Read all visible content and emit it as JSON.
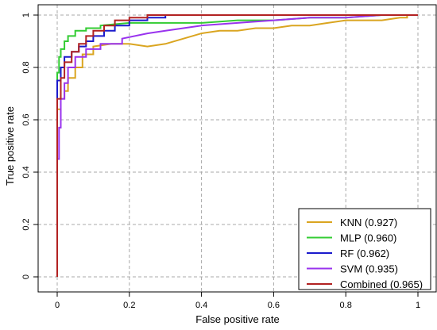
{
  "chart_data": {
    "type": "line",
    "title": "",
    "xlabel": "False positive rate",
    "ylabel": "True positive rate",
    "xlim": [
      0,
      1
    ],
    "ylim": [
      0,
      1
    ],
    "xticks": [
      "0",
      "0.2",
      "0.4",
      "0.6",
      "0.8",
      "1"
    ],
    "yticks": [
      "0",
      "0.2",
      "0.4",
      "0.6",
      "0.8",
      "1"
    ],
    "grid": true,
    "legend_position": "bottom-right",
    "series": [
      {
        "name": "KNN (0.927)",
        "color": "#DAA520",
        "x": [
          0,
          0,
          0.01,
          0.01,
          0.02,
          0.02,
          0.03,
          0.03,
          0.05,
          0.05,
          0.07,
          0.07,
          0.1,
          0.1,
          0.15,
          0.2,
          0.25,
          0.3,
          0.35,
          0.4,
          0.45,
          0.5,
          0.55,
          0.6,
          0.65,
          0.7,
          0.75,
          0.8,
          0.85,
          0.9,
          0.95,
          0.97,
          0.97,
          1
        ],
        "y": [
          0,
          0.64,
          0.64,
          0.68,
          0.68,
          0.71,
          0.71,
          0.76,
          0.76,
          0.8,
          0.8,
          0.85,
          0.85,
          0.88,
          0.89,
          0.89,
          0.88,
          0.89,
          0.91,
          0.93,
          0.94,
          0.94,
          0.95,
          0.95,
          0.96,
          0.96,
          0.97,
          0.98,
          0.98,
          0.98,
          0.99,
          0.99,
          1,
          1
        ]
      },
      {
        "name": "MLP (0.960)",
        "color": "#33CC33",
        "x": [
          0,
          0,
          0.005,
          0.005,
          0.01,
          0.01,
          0.02,
          0.02,
          0.03,
          0.03,
          0.05,
          0.05,
          0.08,
          0.08,
          0.12,
          0.12,
          0.2,
          0.3,
          0.4,
          0.5,
          0.6,
          0.7,
          0.8,
          0.9,
          1
        ],
        "y": [
          0,
          0.78,
          0.78,
          0.84,
          0.84,
          0.87,
          0.87,
          0.9,
          0.9,
          0.92,
          0.92,
          0.94,
          0.94,
          0.95,
          0.95,
          0.96,
          0.97,
          0.97,
          0.97,
          0.98,
          0.98,
          0.99,
          0.99,
          1,
          1
        ]
      },
      {
        "name": "RF (0.962)",
        "color": "#1A1ACC",
        "x": [
          0,
          0,
          0.01,
          0.01,
          0.02,
          0.02,
          0.04,
          0.04,
          0.06,
          0.06,
          0.08,
          0.08,
          0.1,
          0.1,
          0.13,
          0.13,
          0.16,
          0.16,
          0.2,
          0.2,
          0.25,
          0.25,
          0.3,
          0.3,
          0.4,
          1
        ],
        "y": [
          0,
          0.75,
          0.75,
          0.8,
          0.8,
          0.84,
          0.84,
          0.86,
          0.86,
          0.88,
          0.88,
          0.9,
          0.9,
          0.92,
          0.92,
          0.94,
          0.94,
          0.96,
          0.96,
          0.98,
          0.98,
          0.99,
          0.99,
          1,
          1,
          1
        ]
      },
      {
        "name": "SVM (0.935)",
        "color": "#9933EE",
        "x": [
          0,
          0,
          0.005,
          0.005,
          0.01,
          0.01,
          0.02,
          0.02,
          0.03,
          0.03,
          0.05,
          0.05,
          0.08,
          0.08,
          0.12,
          0.12,
          0.18,
          0.18,
          0.25,
          0.3,
          0.35,
          0.4,
          0.5,
          0.6,
          0.7,
          0.8,
          0.9,
          1
        ],
        "y": [
          0,
          0.45,
          0.45,
          0.57,
          0.57,
          0.68,
          0.68,
          0.74,
          0.74,
          0.8,
          0.8,
          0.84,
          0.84,
          0.87,
          0.87,
          0.89,
          0.89,
          0.91,
          0.93,
          0.94,
          0.95,
          0.96,
          0.97,
          0.98,
          0.99,
          0.99,
          1,
          1
        ]
      },
      {
        "name": "Combined (0.965)",
        "color": "#B22222",
        "x": [
          0,
          0,
          0.01,
          0.01,
          0.02,
          0.02,
          0.04,
          0.04,
          0.06,
          0.06,
          0.08,
          0.08,
          0.1,
          0.1,
          0.13,
          0.13,
          0.16,
          0.16,
          0.2,
          0.2,
          0.25,
          0.25,
          0.3,
          0.4,
          0.5,
          0.6,
          0.7,
          0.8,
          0.9,
          1
        ],
        "y": [
          0,
          0.68,
          0.68,
          0.76,
          0.76,
          0.82,
          0.82,
          0.86,
          0.86,
          0.89,
          0.89,
          0.92,
          0.92,
          0.94,
          0.94,
          0.96,
          0.96,
          0.98,
          0.98,
          0.99,
          0.99,
          1,
          1,
          1,
          1,
          1,
          1,
          1,
          1,
          1
        ]
      }
    ]
  }
}
